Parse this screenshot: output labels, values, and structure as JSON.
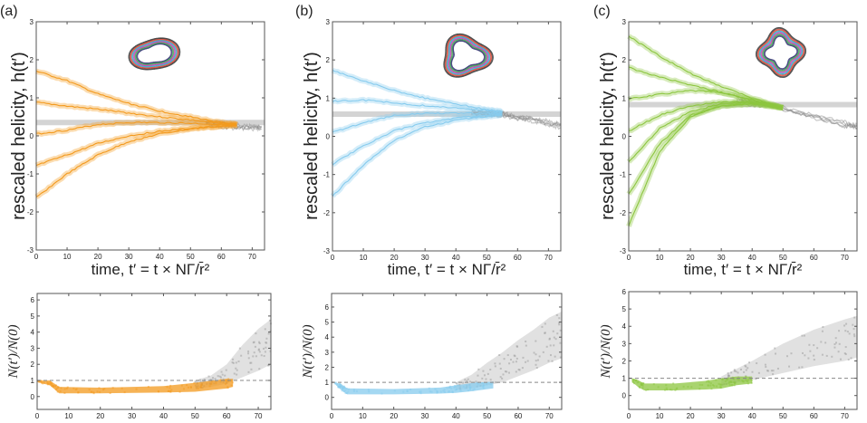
{
  "chart_data": [
    {
      "panel": "(a)",
      "type": "line",
      "ylabel": "rescaled helicity, h(t′)",
      "xlabel": "time, t′ = t × NΓ/r̄²",
      "xlim": [
        0,
        74
      ],
      "ylim": [
        -3,
        3
      ],
      "xticks": [
        0,
        10,
        20,
        30,
        40,
        50,
        60,
        70
      ],
      "yticks": [
        -3,
        -2,
        -1,
        0,
        1,
        2,
        3
      ],
      "color": "#f39a1e",
      "reference_level": 0.35,
      "x": [
        0,
        10,
        20,
        30,
        40,
        50,
        60,
        65
      ],
      "series": [
        {
          "values": [
            1.7,
            1.45,
            1.1,
            0.85,
            0.65,
            0.5,
            0.35,
            0.3
          ]
        },
        {
          "values": [
            0.88,
            0.78,
            0.7,
            0.6,
            0.5,
            0.42,
            0.32,
            0.3
          ]
        },
        {
          "values": [
            0.05,
            0.15,
            0.3,
            0.35,
            0.35,
            0.33,
            0.3,
            0.3
          ]
        },
        {
          "values": [
            -0.78,
            -0.5,
            -0.2,
            0.0,
            0.12,
            0.2,
            0.25,
            0.28
          ]
        },
        {
          "values": [
            -1.62,
            -1.0,
            -0.5,
            -0.15,
            0.05,
            0.18,
            0.25,
            0.28
          ]
        }
      ],
      "gray": {
        "x": [
          55,
          60,
          65,
          70,
          73
        ],
        "values": [
          0.3,
          0.28,
          0.25,
          0.22,
          0.2
        ]
      }
    },
    {
      "panel": "(b)",
      "type": "line",
      "ylabel": "rescaled helicity, h(t′)",
      "xlabel": "time, t′ = t × NΓ/r̄²",
      "xlim": [
        0,
        74
      ],
      "ylim": [
        -3,
        3
      ],
      "xticks": [
        0,
        10,
        20,
        30,
        40,
        50,
        60,
        70
      ],
      "yticks": [
        -3,
        -2,
        -1,
        0,
        1,
        2,
        3
      ],
      "color": "#86cbee",
      "reference_level": 0.58,
      "x": [
        0,
        10,
        20,
        30,
        40,
        50,
        55
      ],
      "series": [
        {
          "values": [
            1.73,
            1.45,
            1.2,
            1.0,
            0.85,
            0.7,
            0.65
          ]
        },
        {
          "values": [
            0.92,
            0.95,
            0.88,
            0.8,
            0.75,
            0.68,
            0.62
          ]
        },
        {
          "values": [
            0.1,
            0.35,
            0.55,
            0.6,
            0.6,
            0.6,
            0.6
          ]
        },
        {
          "values": [
            -0.73,
            -0.25,
            0.15,
            0.35,
            0.48,
            0.55,
            0.58
          ]
        },
        {
          "values": [
            -1.57,
            -0.75,
            -0.1,
            0.25,
            0.42,
            0.52,
            0.56
          ]
        }
      ],
      "gray": {
        "x": [
          45,
          50,
          55,
          60,
          65,
          70,
          74
        ],
        "values": [
          0.62,
          0.6,
          0.57,
          0.5,
          0.42,
          0.35,
          0.28
        ]
      }
    },
    {
      "panel": "(c)",
      "type": "line",
      "ylabel": "rescaled helicity, h(t′)",
      "xlabel": "time, t′ = t × NΓ/r̄²",
      "xlim": [
        0,
        74
      ],
      "ylim": [
        -3,
        3
      ],
      "xticks": [
        0,
        10,
        20,
        30,
        40,
        50,
        60,
        70
      ],
      "yticks": [
        -3,
        -2,
        -1,
        0,
        1,
        2,
        3
      ],
      "color": "#8cc63f",
      "reference_level": 0.83,
      "x": [
        0,
        10,
        20,
        30,
        40,
        50
      ],
      "series": [
        {
          "values": [
            2.62,
            2.1,
            1.65,
            1.3,
            1.0,
            0.75
          ]
        },
        {
          "values": [
            1.8,
            1.55,
            1.35,
            1.15,
            0.95,
            0.75
          ]
        },
        {
          "values": [
            0.98,
            1.1,
            1.2,
            1.15,
            0.95,
            0.75
          ]
        },
        {
          "values": [
            0.14,
            0.55,
            0.8,
            0.9,
            0.9,
            0.75
          ]
        },
        {
          "values": [
            -0.68,
            0.2,
            0.65,
            0.85,
            0.88,
            0.75
          ]
        },
        {
          "values": [
            -1.52,
            -0.2,
            0.55,
            0.8,
            0.85,
            0.75
          ]
        },
        {
          "values": [
            -2.35,
            -0.4,
            0.5,
            0.8,
            0.85,
            0.75
          ]
        }
      ],
      "gray": {
        "x": [
          35,
          40,
          50,
          60,
          70,
          74
        ],
        "values": [
          0.95,
          0.88,
          0.7,
          0.5,
          0.32,
          0.25
        ]
      }
    },
    {
      "panel": "(a)",
      "type": "scatter",
      "ylabel": "N(t′)/N(0)",
      "xlim": [
        0,
        74
      ],
      "ylim": [
        -0.8,
        6.4
      ],
      "xticks": [
        0,
        10,
        20,
        30,
        40,
        50,
        60,
        70
      ],
      "yticks": [
        0,
        1,
        2,
        3,
        4,
        5,
        6
      ],
      "color": "#f39a1e",
      "reference_level": 1,
      "colored": {
        "x": [
          0,
          4,
          7,
          20,
          40,
          50,
          60,
          62
        ],
        "low": [
          0.9,
          0.7,
          0.2,
          0.2,
          0.25,
          0.3,
          0.5,
          0.6
        ],
        "high": [
          1.0,
          1.0,
          0.6,
          0.55,
          0.65,
          0.85,
          1.1,
          1.1
        ]
      },
      "gray": {
        "x": [
          50,
          55,
          60,
          65,
          70,
          74
        ],
        "low": [
          0.5,
          0.6,
          0.8,
          1.2,
          1.6,
          2.0
        ],
        "high": [
          1.0,
          1.3,
          2.0,
          3.2,
          4.2,
          4.8
        ]
      }
    },
    {
      "panel": "(b)",
      "type": "scatter",
      "ylabel": "N(t′)/N(0)",
      "xlim": [
        0,
        74
      ],
      "ylim": [
        -0.8,
        6.9
      ],
      "xticks": [
        0,
        10,
        20,
        30,
        40,
        50,
        60,
        70
      ],
      "yticks": [
        0,
        1,
        2,
        3,
        4,
        5,
        6
      ],
      "color": "#86cbee",
      "reference_level": 1,
      "colored": {
        "x": [
          1,
          3,
          5,
          20,
          35,
          40,
          45,
          52
        ],
        "low": [
          0.9,
          0.5,
          0.2,
          0.2,
          0.25,
          0.3,
          0.4,
          0.6
        ],
        "high": [
          1.0,
          0.9,
          0.6,
          0.55,
          0.65,
          0.8,
          0.95,
          1.05
        ]
      },
      "gray": {
        "x": [
          40,
          45,
          50,
          55,
          60,
          65,
          70,
          74
        ],
        "low": [
          0.5,
          0.6,
          0.8,
          1.0,
          1.4,
          1.8,
          2.3,
          2.6
        ],
        "high": [
          1.0,
          1.5,
          2.3,
          3.0,
          3.8,
          4.5,
          5.3,
          5.7
        ]
      }
    },
    {
      "panel": "(c)",
      "type": "scatter",
      "ylabel": "N(t′)/N(0)",
      "xlim": [
        0,
        74
      ],
      "ylim": [
        -0.8,
        6.0
      ],
      "xticks": [
        0,
        10,
        20,
        30,
        40,
        50,
        60,
        70
      ],
      "yticks": [
        0,
        1,
        2,
        3,
        4,
        5,
        6
      ],
      "color": "#8cc63f",
      "reference_level": 1,
      "colored": {
        "x": [
          1,
          3,
          5,
          15,
          25,
          30,
          35,
          40
        ],
        "low": [
          0.8,
          0.5,
          0.3,
          0.3,
          0.35,
          0.4,
          0.6,
          0.7
        ],
        "high": [
          1.0,
          0.9,
          0.7,
          0.7,
          0.85,
          1.0,
          1.1,
          1.1
        ]
      },
      "gray": {
        "x": [
          30,
          40,
          50,
          60,
          70,
          74
        ],
        "low": [
          0.6,
          0.9,
          1.3,
          1.7,
          2.0,
          2.2
        ],
        "high": [
          1.1,
          2.0,
          3.0,
          3.8,
          4.4,
          4.6
        ]
      }
    }
  ],
  "knot_colors": [
    "#2b2b6e",
    "#3aa14a",
    "#c23bb0",
    "#2aa8c8",
    "#e0402a",
    "#333333"
  ]
}
